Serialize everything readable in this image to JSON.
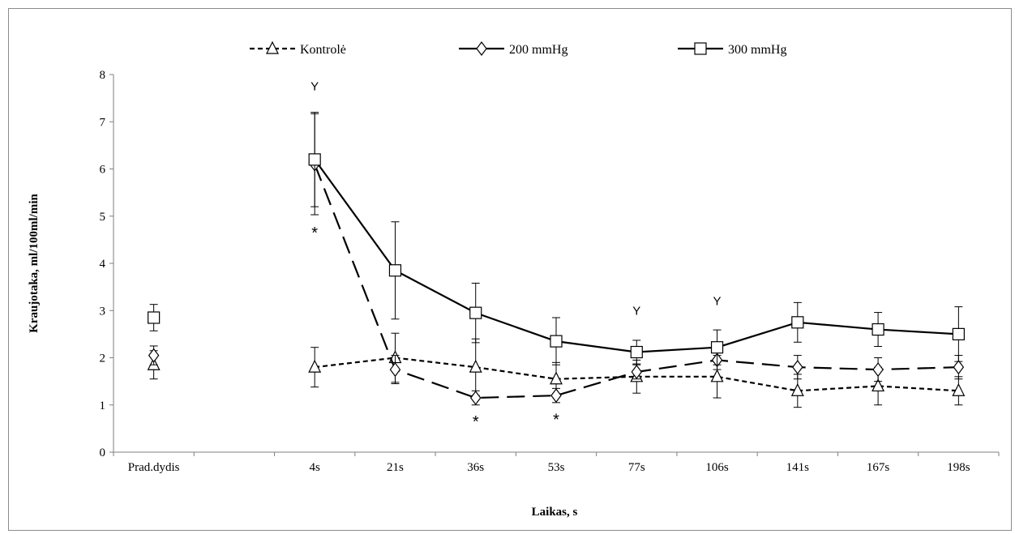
{
  "chart_data": {
    "type": "line",
    "xlabel": "Laikas, s",
    "ylabel": "Kraujotaka, ml/100ml/min",
    "categories": [
      "Prad.dydis",
      "",
      "4s",
      "21s",
      "36s",
      "53s",
      "77s",
      "106s",
      "141s",
      "167s",
      "198s"
    ],
    "ylim": [
      0,
      8
    ],
    "yticks": [
      0,
      1,
      2,
      3,
      4,
      5,
      6,
      7,
      8
    ],
    "grid": false,
    "legend_position": "top",
    "series": [
      {
        "name": "Kontrolė",
        "marker": "triangle",
        "line_style": "dotted-short-dash",
        "values": [
          1.85,
          null,
          1.8,
          2.0,
          1.8,
          1.55,
          1.6,
          1.6,
          1.3,
          1.4,
          1.3
        ],
        "errors": [
          0.3,
          null,
          0.42,
          0.52,
          0.6,
          0.35,
          0.35,
          0.45,
          0.35,
          0.4,
          0.3
        ]
      },
      {
        "name": "200 mmHg",
        "marker": "diamond",
        "line_style": "long-dash",
        "values": [
          2.05,
          null,
          6.1,
          1.75,
          1.15,
          1.2,
          1.7,
          1.95,
          1.8,
          1.75,
          1.8
        ],
        "errors": [
          0.2,
          null,
          1.07,
          0.3,
          0.15,
          0.15,
          0.15,
          0.2,
          0.25,
          0.25,
          0.25
        ]
      },
      {
        "name": "300 mmHg",
        "marker": "square",
        "line_style": "solid",
        "values": [
          2.85,
          null,
          6.2,
          3.85,
          2.95,
          2.35,
          2.12,
          2.22,
          2.75,
          2.6,
          2.5
        ],
        "errors": [
          0.28,
          null,
          1.0,
          1.03,
          0.63,
          0.5,
          0.25,
          0.37,
          0.42,
          0.36,
          0.58
        ]
      }
    ],
    "annotations": [
      {
        "text": "Y",
        "x_index": 2,
        "y": 7.75
      },
      {
        "text": "*",
        "x_index": 2,
        "y": 4.7
      },
      {
        "text": "*",
        "x_index": 4,
        "y": 0.7
      },
      {
        "text": "*",
        "x_index": 5,
        "y": 0.75
      },
      {
        "text": "Y",
        "x_index": 6,
        "y": 3.0
      },
      {
        "text": "Y",
        "x_index": 7,
        "y": 3.2
      }
    ],
    "colors": {
      "line": "#000000",
      "marker_fill": "#ffffff",
      "frame": "#8c8c8c"
    }
  }
}
